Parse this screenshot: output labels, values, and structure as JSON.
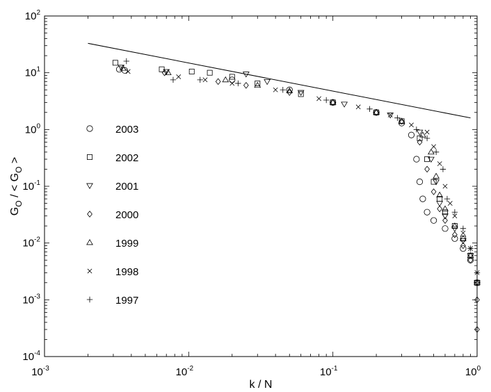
{
  "chart_data": {
    "type": "scatter",
    "xscale": "log",
    "yscale": "log",
    "xlim": [
      0.001,
      1
    ],
    "ylim": [
      0.0001,
      100
    ],
    "xlabel": "k / N",
    "ylabel": {
      "parts": [
        "G",
        "O",
        " / < G",
        "O",
        " >"
      ]
    },
    "xticks": [
      {
        "base": "10",
        "exp": "-3",
        "value": 0.001
      },
      {
        "base": "10",
        "exp": "-2",
        "value": 0.01
      },
      {
        "base": "10",
        "exp": "-1",
        "value": 0.1
      },
      {
        "base": "10",
        "exp": "0",
        "value": 1
      }
    ],
    "yticks": [
      {
        "base": "10",
        "exp": "-4",
        "value": 0.0001
      },
      {
        "base": "10",
        "exp": "-3",
        "value": 0.001
      },
      {
        "base": "10",
        "exp": "-2",
        "value": 0.01
      },
      {
        "base": "10",
        "exp": "-1",
        "value": 0.1
      },
      {
        "base": "10",
        "exp": "0",
        "value": 1
      },
      {
        "base": "10",
        "exp": "1",
        "value": 10
      },
      {
        "base": "10",
        "exp": "2",
        "value": 100
      }
    ],
    "reference_line": {
      "x": [
        0.002,
        0.9
      ],
      "y": [
        33,
        1.6
      ]
    },
    "series": [
      {
        "name": "2003",
        "marker": "circle",
        "x": [
          0.0033,
          0.0036,
          0.02,
          0.05,
          0.1,
          0.2,
          0.3,
          0.35,
          0.38,
          0.4,
          0.42,
          0.45,
          0.5,
          0.6,
          0.7,
          0.8,
          0.9,
          1.0
        ],
        "y": [
          11.5,
          11,
          7.5,
          5,
          3,
          2,
          1.3,
          0.8,
          0.3,
          0.12,
          0.06,
          0.035,
          0.025,
          0.018,
          0.012,
          0.008,
          0.005,
          0.002
        ]
      },
      {
        "name": "2002",
        "marker": "square",
        "x": [
          0.0031,
          0.0065,
          0.0105,
          0.014,
          0.02,
          0.03,
          0.06,
          0.1,
          0.2,
          0.3,
          0.4,
          0.45,
          0.5,
          0.55,
          0.6,
          0.7,
          0.8,
          0.9,
          1.0
        ],
        "y": [
          15,
          11.5,
          10.5,
          10,
          8.5,
          6.5,
          4.2,
          3,
          2,
          1.4,
          0.7,
          0.3,
          0.12,
          0.06,
          0.035,
          0.02,
          0.012,
          0.006,
          0.002
        ]
      },
      {
        "name": "2001",
        "marker": "triangle-down",
        "x": [
          0.0034,
          0.007,
          0.025,
          0.035,
          0.06,
          0.12,
          0.25,
          0.4,
          0.48,
          0.52,
          0.55,
          0.6,
          0.7,
          0.8,
          0.9,
          1.0
        ],
        "y": [
          12.5,
          10.5,
          9.5,
          7,
          4.5,
          2.8,
          1.8,
          0.9,
          0.3,
          0.12,
          0.05,
          0.03,
          0.018,
          0.011,
          0.006,
          0.002
        ]
      },
      {
        "name": "2000",
        "marker": "diamond",
        "x": [
          0.0068,
          0.016,
          0.025,
          0.05,
          0.1,
          0.2,
          0.3,
          0.4,
          0.45,
          0.5,
          0.55,
          0.6,
          0.7,
          0.8,
          0.9,
          1.0,
          1.0
        ],
        "y": [
          10,
          7,
          6,
          4.5,
          3,
          2,
          1.4,
          0.6,
          0.2,
          0.08,
          0.04,
          0.025,
          0.014,
          0.009,
          0.005,
          0.001,
          0.0003
        ]
      },
      {
        "name": "1999",
        "marker": "triangle-up",
        "x": [
          0.0035,
          0.0072,
          0.018,
          0.03,
          0.05,
          0.1,
          0.2,
          0.3,
          0.42,
          0.48,
          0.52,
          0.55,
          0.6,
          0.7,
          0.8,
          0.9,
          1.0
        ],
        "y": [
          12,
          10,
          7.5,
          6,
          4.8,
          3,
          2,
          1.4,
          0.8,
          0.4,
          0.15,
          0.07,
          0.04,
          0.02,
          0.012,
          0.006,
          0.002
        ]
      },
      {
        "name": "1998",
        "marker": "x",
        "x": [
          0.0038,
          0.0085,
          0.013,
          0.02,
          0.04,
          0.08,
          0.15,
          0.25,
          0.35,
          0.45,
          0.5,
          0.55,
          0.6,
          0.65,
          0.7,
          0.8,
          0.9,
          1.0
        ],
        "y": [
          10.5,
          8.5,
          7.5,
          6.5,
          5,
          3.5,
          2.5,
          1.8,
          1.2,
          0.9,
          0.5,
          0.25,
          0.1,
          0.05,
          0.03,
          0.015,
          0.008,
          0.003
        ]
      },
      {
        "name": "1997",
        "marker": "plus",
        "x": [
          0.0037,
          0.0078,
          0.012,
          0.022,
          0.045,
          0.09,
          0.18,
          0.28,
          0.38,
          0.45,
          0.52,
          0.58,
          0.62,
          0.7,
          0.8,
          0.9,
          1.0
        ],
        "y": [
          16,
          7.5,
          7.5,
          6.5,
          5,
          3.3,
          2.3,
          1.6,
          1.0,
          0.7,
          0.4,
          0.2,
          0.06,
          0.035,
          0.018,
          0.008,
          0.003
        ]
      }
    ]
  }
}
